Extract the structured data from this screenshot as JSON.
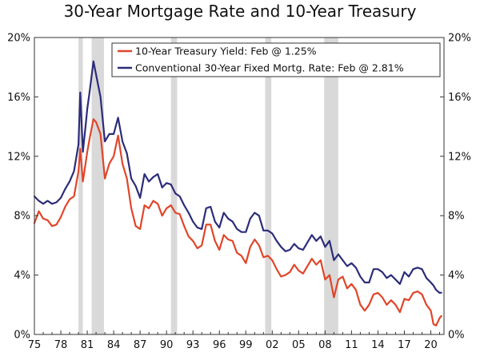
{
  "chart_data": {
    "type": "line",
    "title": "30-Year Mortgage Rate and 10-Year Treasury",
    "xlabel": "",
    "ylabel": "",
    "xlim": [
      1975.0,
      2021.5
    ],
    "ylim": [
      0,
      20
    ],
    "y_ticks": [
      0,
      4,
      8,
      12,
      16,
      20
    ],
    "y_tick_labels": [
      "0%",
      "4%",
      "8%",
      "12%",
      "16%",
      "20%"
    ],
    "x_ticks": [
      1975,
      1978,
      1981,
      1984,
      1987,
      1990,
      1993,
      1996,
      1999,
      2002,
      2005,
      2008,
      2011,
      2014,
      2017,
      2020
    ],
    "x_tick_labels": [
      "75",
      "78",
      "81",
      "84",
      "87",
      "90",
      "93",
      "96",
      "99",
      "02",
      "05",
      "08",
      "11",
      "14",
      "17",
      "20"
    ],
    "grid": false,
    "legend_position": "top-right",
    "recessions": [
      {
        "start": 1980.0,
        "end": 1980.5
      },
      {
        "start": 1981.5,
        "end": 1982.9
      },
      {
        "start": 1990.5,
        "end": 1991.2
      },
      {
        "start": 2001.2,
        "end": 2001.9
      },
      {
        "start": 2007.9,
        "end": 2009.5
      }
    ],
    "series": [
      {
        "name": "10-Year Treasury Yield: Feb @ 1.25%",
        "color": "#e0462a",
        "x": [
          1975.0,
          1975.5,
          1976.0,
          1976.5,
          1977.0,
          1977.5,
          1978.0,
          1978.5,
          1979.0,
          1979.5,
          1980.0,
          1980.2,
          1980.5,
          1980.8,
          1981.0,
          1981.3,
          1981.7,
          1982.0,
          1982.5,
          1983.0,
          1983.5,
          1984.0,
          1984.5,
          1985.0,
          1985.5,
          1986.0,
          1986.5,
          1987.0,
          1987.5,
          1988.0,
          1988.5,
          1989.0,
          1989.5,
          1990.0,
          1990.5,
          1991.0,
          1991.5,
          1992.0,
          1992.5,
          1993.0,
          1993.5,
          1994.0,
          1994.5,
          1995.0,
          1995.5,
          1996.0,
          1996.5,
          1997.0,
          1997.5,
          1998.0,
          1998.5,
          1999.0,
          1999.5,
          2000.0,
          2000.5,
          2001.0,
          2001.5,
          2002.0,
          2002.5,
          2003.0,
          2003.5,
          2004.0,
          2004.5,
          2005.0,
          2005.5,
          2006.0,
          2006.5,
          2007.0,
          2007.5,
          2008.0,
          2008.5,
          2009.0,
          2009.5,
          2010.0,
          2010.5,
          2011.0,
          2011.5,
          2012.0,
          2012.5,
          2013.0,
          2013.5,
          2014.0,
          2014.5,
          2015.0,
          2015.5,
          2016.0,
          2016.5,
          2017.0,
          2017.5,
          2018.0,
          2018.5,
          2019.0,
          2019.5,
          2020.0,
          2020.3,
          2020.6,
          2021.0,
          2021.2
        ],
        "values": [
          7.5,
          8.3,
          7.8,
          7.7,
          7.3,
          7.4,
          7.9,
          8.6,
          9.1,
          9.3,
          11.0,
          12.5,
          10.3,
          11.5,
          12.3,
          13.3,
          14.5,
          14.3,
          13.5,
          10.5,
          11.5,
          12.0,
          13.4,
          11.5,
          10.5,
          8.5,
          7.3,
          7.1,
          8.7,
          8.5,
          9.0,
          8.8,
          8.0,
          8.5,
          8.7,
          8.2,
          8.1,
          7.3,
          6.6,
          6.3,
          5.8,
          6.0,
          7.4,
          7.4,
          6.3,
          5.7,
          6.7,
          6.4,
          6.3,
          5.5,
          5.3,
          4.8,
          5.9,
          6.4,
          6.0,
          5.2,
          5.3,
          5.0,
          4.4,
          3.9,
          4.0,
          4.2,
          4.7,
          4.3,
          4.1,
          4.6,
          5.1,
          4.7,
          5.0,
          3.7,
          4.0,
          2.5,
          3.7,
          3.9,
          3.1,
          3.4,
          3.0,
          2.0,
          1.6,
          2.0,
          2.7,
          2.8,
          2.5,
          2.0,
          2.3,
          2.0,
          1.5,
          2.4,
          2.3,
          2.8,
          2.9,
          2.7,
          2.0,
          1.6,
          0.7,
          0.6,
          1.1,
          1.25
        ]
      },
      {
        "name": "Conventional 30-Year Fixed Mortg. Rate: Feb @ 2.81%",
        "color": "#2c2c7a",
        "x": [
          1975.0,
          1975.5,
          1976.0,
          1976.5,
          1977.0,
          1977.5,
          1978.0,
          1978.5,
          1979.0,
          1979.5,
          1980.0,
          1980.2,
          1980.5,
          1980.8,
          1981.0,
          1981.3,
          1981.7,
          1982.0,
          1982.5,
          1983.0,
          1983.5,
          1984.0,
          1984.5,
          1985.0,
          1985.5,
          1986.0,
          1986.5,
          1987.0,
          1987.5,
          1988.0,
          1988.5,
          1989.0,
          1989.5,
          1990.0,
          1990.5,
          1991.0,
          1991.5,
          1992.0,
          1992.5,
          1993.0,
          1993.5,
          1994.0,
          1994.5,
          1995.0,
          1995.5,
          1996.0,
          1996.5,
          1997.0,
          1997.5,
          1998.0,
          1998.5,
          1999.0,
          1999.5,
          2000.0,
          2000.5,
          2001.0,
          2001.5,
          2002.0,
          2002.5,
          2003.0,
          2003.5,
          2004.0,
          2004.5,
          2005.0,
          2005.5,
          2006.0,
          2006.5,
          2007.0,
          2007.5,
          2008.0,
          2008.5,
          2009.0,
          2009.5,
          2010.0,
          2010.5,
          2011.0,
          2011.5,
          2012.0,
          2012.5,
          2013.0,
          2013.5,
          2014.0,
          2014.5,
          2015.0,
          2015.5,
          2016.0,
          2016.5,
          2017.0,
          2017.5,
          2018.0,
          2018.5,
          2019.0,
          2019.5,
          2020.0,
          2020.3,
          2020.6,
          2021.0,
          2021.2
        ],
        "values": [
          9.3,
          9.0,
          8.8,
          9.0,
          8.8,
          8.9,
          9.2,
          9.8,
          10.3,
          11.0,
          12.8,
          16.3,
          12.3,
          14.0,
          15.2,
          16.5,
          18.4,
          17.5,
          16.0,
          13.0,
          13.5,
          13.5,
          14.6,
          13.0,
          12.2,
          10.5,
          10.0,
          9.2,
          10.8,
          10.3,
          10.6,
          10.8,
          9.9,
          10.2,
          10.1,
          9.5,
          9.3,
          8.7,
          8.2,
          7.6,
          7.2,
          7.1,
          8.5,
          8.6,
          7.6,
          7.2,
          8.2,
          7.8,
          7.6,
          7.1,
          6.9,
          6.9,
          7.8,
          8.2,
          8.0,
          7.0,
          7.0,
          6.8,
          6.3,
          5.9,
          5.6,
          5.7,
          6.1,
          5.8,
          5.7,
          6.2,
          6.7,
          6.3,
          6.6,
          5.9,
          6.3,
          5.0,
          5.4,
          5.0,
          4.6,
          4.8,
          4.5,
          3.9,
          3.5,
          3.5,
          4.4,
          4.4,
          4.2,
          3.8,
          4.0,
          3.7,
          3.4,
          4.2,
          3.9,
          4.4,
          4.5,
          4.4,
          3.8,
          3.5,
          3.3,
          3.0,
          2.8,
          2.81
        ]
      }
    ]
  }
}
